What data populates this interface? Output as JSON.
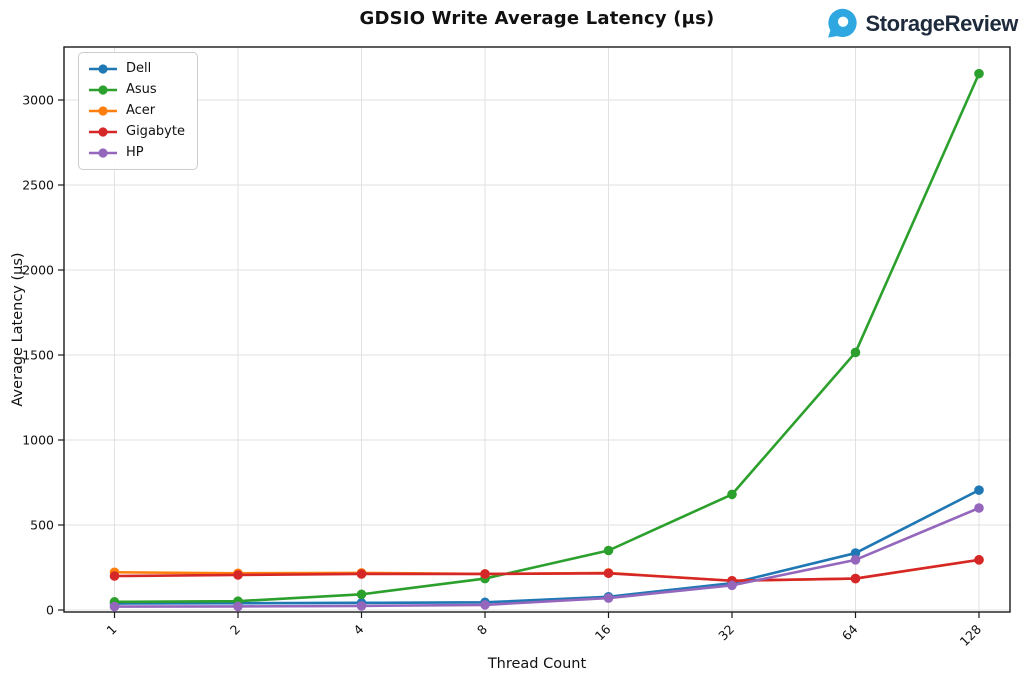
{
  "logo": {
    "text": "StorageReview",
    "icon_color": "#2FA8E1",
    "text_color": "#1E2B3C"
  },
  "chart_data": {
    "type": "line",
    "title": "GDSIO Write Average Latency (μs)",
    "xlabel": "Thread Count",
    "ylabel": "Average Latency (μs)",
    "x_scale": "log2",
    "categories": [
      "1",
      "2",
      "4",
      "8",
      "16",
      "32",
      "64",
      "128"
    ],
    "y_ticks": [
      0,
      500,
      1000,
      1500,
      2000,
      2500,
      3000
    ],
    "ylim": [
      0,
      3310
    ],
    "grid": true,
    "legend_position": "upper-left",
    "series": [
      {
        "name": "Dell",
        "color": "#1f77b4",
        "values": [
          38,
          40,
          42,
          45,
          78,
          158,
          335,
          705
        ]
      },
      {
        "name": "Asus",
        "color": "#2ca02c",
        "values": [
          48,
          52,
          92,
          185,
          350,
          680,
          1515,
          3155
        ]
      },
      {
        "name": "Acer",
        "color": "#ff7f0e",
        "values": [
          222,
          216,
          218,
          212,
          218,
          172,
          185,
          295
        ]
      },
      {
        "name": "Gigabyte",
        "color": "#d62728",
        "values": [
          200,
          206,
          212,
          212,
          216,
          172,
          185,
          295
        ]
      },
      {
        "name": "HP",
        "color": "#9467bd",
        "values": [
          20,
          21,
          24,
          30,
          70,
          145,
          295,
          600
        ]
      }
    ]
  }
}
